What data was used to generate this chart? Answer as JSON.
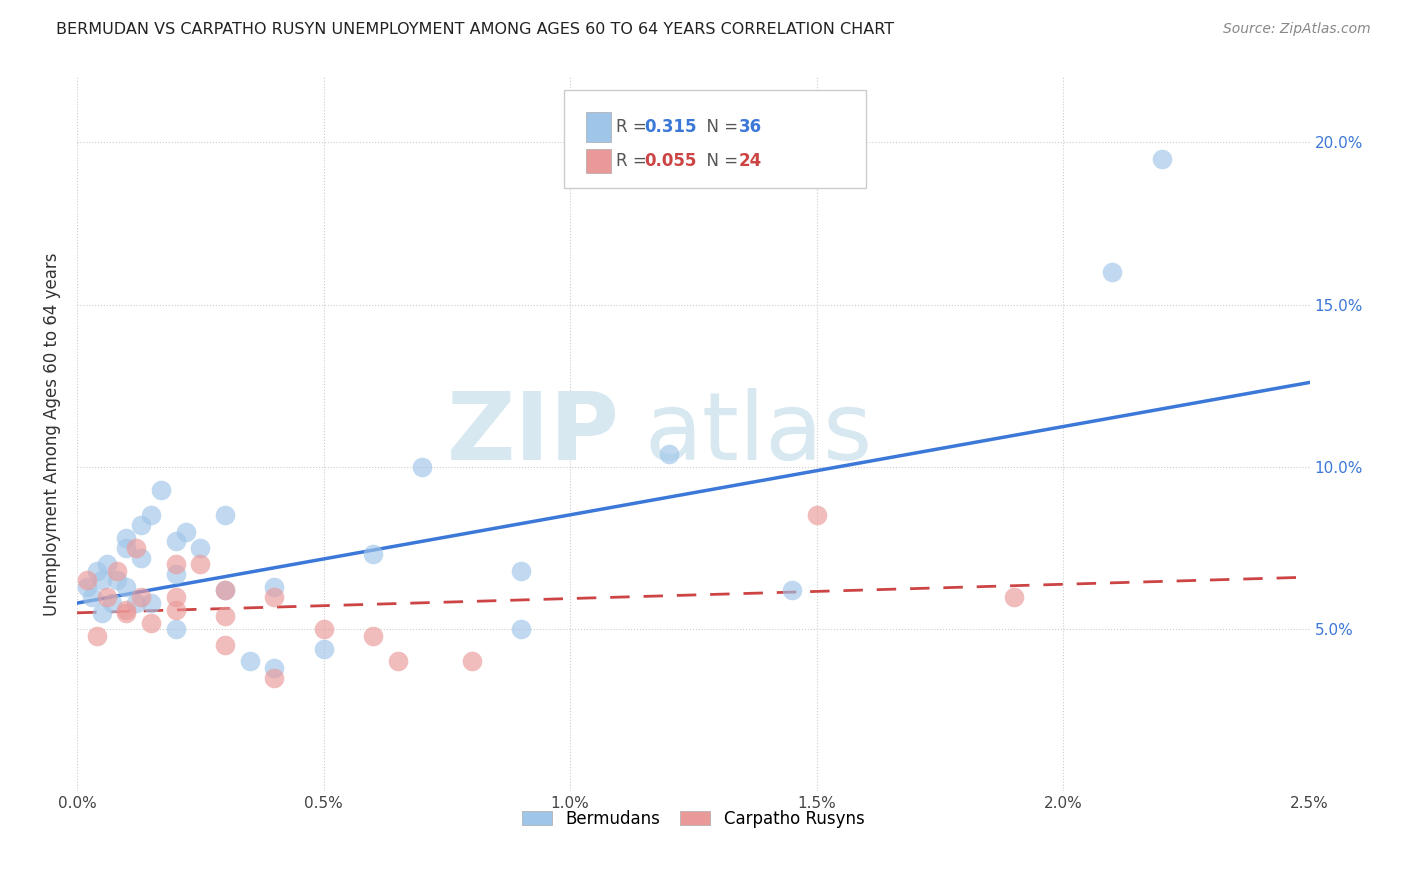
{
  "title": "BERMUDAN VS CARPATHO RUSYN UNEMPLOYMENT AMONG AGES 60 TO 64 YEARS CORRELATION CHART",
  "source": "Source: ZipAtlas.com",
  "ylabel": "Unemployment Among Ages 60 to 64 years",
  "xlim": [
    0.0,
    0.025
  ],
  "ylim": [
    0.0,
    0.22
  ],
  "xticks": [
    0.0,
    0.005,
    0.01,
    0.015,
    0.02,
    0.025
  ],
  "xticklabels": [
    "0.0%",
    "0.5%",
    "1.0%",
    "1.5%",
    "2.0%",
    "2.5%"
  ],
  "yticks_right": [
    0.05,
    0.1,
    0.15,
    0.2
  ],
  "yticklabels_right": [
    "5.0%",
    "10.0%",
    "15.0%",
    "20.0%"
  ],
  "blue_color": "#9fc5e8",
  "pink_color": "#ea9999",
  "trend_blue": "#3c78d8",
  "trend_pink": "#cc4444",
  "background": "#ffffff",
  "blue_x": [
    0.0002,
    0.0003,
    0.0004,
    0.0005,
    0.0005,
    0.0006,
    0.0007,
    0.0008,
    0.001,
    0.001,
    0.001,
    0.0012,
    0.0013,
    0.0013,
    0.0015,
    0.0015,
    0.0017,
    0.002,
    0.002,
    0.002,
    0.0022,
    0.0025,
    0.003,
    0.003,
    0.0035,
    0.004,
    0.004,
    0.005,
    0.006,
    0.007,
    0.009,
    0.009,
    0.012,
    0.0145,
    0.021,
    0.022
  ],
  "blue_y": [
    0.063,
    0.06,
    0.068,
    0.055,
    0.065,
    0.07,
    0.058,
    0.065,
    0.075,
    0.063,
    0.078,
    0.058,
    0.082,
    0.072,
    0.085,
    0.058,
    0.093,
    0.077,
    0.067,
    0.05,
    0.08,
    0.075,
    0.085,
    0.062,
    0.04,
    0.063,
    0.038,
    0.044,
    0.073,
    0.1,
    0.068,
    0.05,
    0.104,
    0.062,
    0.16,
    0.195
  ],
  "pink_x": [
    0.0002,
    0.0004,
    0.0006,
    0.0008,
    0.001,
    0.001,
    0.0012,
    0.0013,
    0.0015,
    0.002,
    0.002,
    0.002,
    0.0025,
    0.003,
    0.003,
    0.003,
    0.004,
    0.004,
    0.005,
    0.006,
    0.0065,
    0.008,
    0.015,
    0.019
  ],
  "pink_y": [
    0.065,
    0.048,
    0.06,
    0.068,
    0.056,
    0.055,
    0.075,
    0.06,
    0.052,
    0.07,
    0.06,
    0.056,
    0.07,
    0.054,
    0.045,
    0.062,
    0.06,
    0.035,
    0.05,
    0.048,
    0.04,
    0.04,
    0.085,
    0.06
  ],
  "blue_trend_x": [
    0.0,
    0.025
  ],
  "blue_trend_y": [
    0.058,
    0.126
  ],
  "pink_trend_x": [
    0.0,
    0.025
  ],
  "pink_trend_y": [
    0.055,
    0.066
  ]
}
